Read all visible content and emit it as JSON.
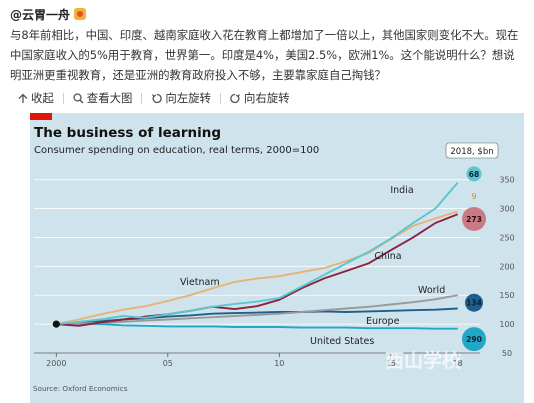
{
  "post": {
    "author": "@云胃一舟",
    "author_badge_icon": "vip-badge-icon",
    "text": "与8年前相比，中国、印度、越南家庭收入花在教育上都增加了一倍以上，其他国家则变化不大。现在中国家庭收入的5%用于教育，世界第一。印度是4%，美国2.5%，欧洲1%。这个能说明什么？想说明亚洲更重视教育，还是亚洲的教育政府投入不够，主要靠家庭自己掏钱？"
  },
  "actions": [
    {
      "label": "收起",
      "icon": "collapse-arrow-icon"
    },
    {
      "label": "查看大图",
      "icon": "magnifier-icon"
    },
    {
      "label": "向左旋转",
      "icon": "rotate-left-icon"
    },
    {
      "label": "向右旋转",
      "icon": "rotate-right-icon"
    }
  ],
  "chart": {
    "title": "The business of learning",
    "subtitle": "Consumer spending on education, real terms, 2000=100",
    "source": "Source: Oxford Economics",
    "badge_header": "2018, $bn",
    "watermark": "西山学校",
    "colors": {
      "background": "#cfe3ed",
      "India": "#5cc6cf",
      "China": "#8c2240",
      "Vietnam": "#e8b276",
      "World": "#9a9a9a",
      "Europe": "#1f5f8b",
      "United States": "#22a8c7",
      "grid": "#ffffff",
      "axis_text": "#555555"
    }
  },
  "chart_data": {
    "type": "line",
    "title": "The business of learning",
    "subtitle": "Consumer spending on education, real terms, 2000=100",
    "x_tick_labels": [
      "2000",
      "05",
      "10",
      "15",
      "18"
    ],
    "x_ticks": [
      2000,
      2005,
      2010,
      2015,
      2018
    ],
    "xlim": [
      1999,
      2019
    ],
    "y_ticks": [
      50,
      100,
      150,
      200,
      250,
      300,
      350
    ],
    "ylim": [
      50,
      365
    ],
    "x": [
      2000,
      2001,
      2002,
      2003,
      2004,
      2005,
      2006,
      2007,
      2008,
      2009,
      2010,
      2011,
      2012,
      2013,
      2014,
      2015,
      2016,
      2017,
      2018
    ],
    "series": [
      {
        "name": "India",
        "values": [
          100,
          104,
          108,
          114,
          111,
          117,
          123,
          130,
          135,
          139,
          145,
          165,
          185,
          205,
          225,
          248,
          275,
          300,
          345
        ],
        "value_2018_bn": 68
      },
      {
        "name": "China",
        "values": [
          100,
          97,
          103,
          108,
          113,
          117,
          123,
          130,
          126,
          131,
          142,
          162,
          179,
          192,
          205,
          228,
          250,
          275,
          290
        ],
        "value_2018_bn": 273
      },
      {
        "name": "Vietnam",
        "values": [
          100,
          108,
          117,
          125,
          131,
          140,
          150,
          162,
          173,
          179,
          183,
          190,
          197,
          209,
          223,
          247,
          270,
          283,
          295
        ],
        "value_2018_bn": 9
      },
      {
        "name": "World",
        "values": [
          100,
          101,
          102,
          104,
          106,
          108,
          110,
          112,
          114,
          116,
          118,
          121,
          124,
          127,
          130,
          134,
          138,
          143,
          150
        ]
      },
      {
        "name": "Europe",
        "values": [
          100,
          102,
          105,
          108,
          110,
          113,
          115,
          118,
          119,
          120,
          121,
          121,
          122,
          121,
          122,
          123,
          124,
          125,
          127
        ],
        "value_2018_bn": 134
      },
      {
        "name": "United States",
        "values": [
          100,
          101,
          100,
          98,
          97,
          96,
          96,
          96,
          95,
          95,
          95,
          94,
          94,
          94,
          93,
          93,
          93,
          92,
          92
        ],
        "value_2018_bn": 290
      }
    ],
    "series_labels": [
      "India",
      "China",
      "Vietnam",
      "World",
      "Europe",
      "United States"
    ],
    "badges": [
      {
        "value": 68,
        "color": "#5cc6cf",
        "y": 360
      },
      {
        "value": 9,
        "color": "#e8b276",
        "y": 322
      },
      {
        "value": 273,
        "color": "#c97a85",
        "y": 282
      },
      {
        "value": 134,
        "color": "#1f5f8b",
        "y": 137
      },
      {
        "value": 290,
        "color": "#22a8c7",
        "y": 74
      }
    ],
    "grid": true,
    "legend": "inline labels"
  }
}
